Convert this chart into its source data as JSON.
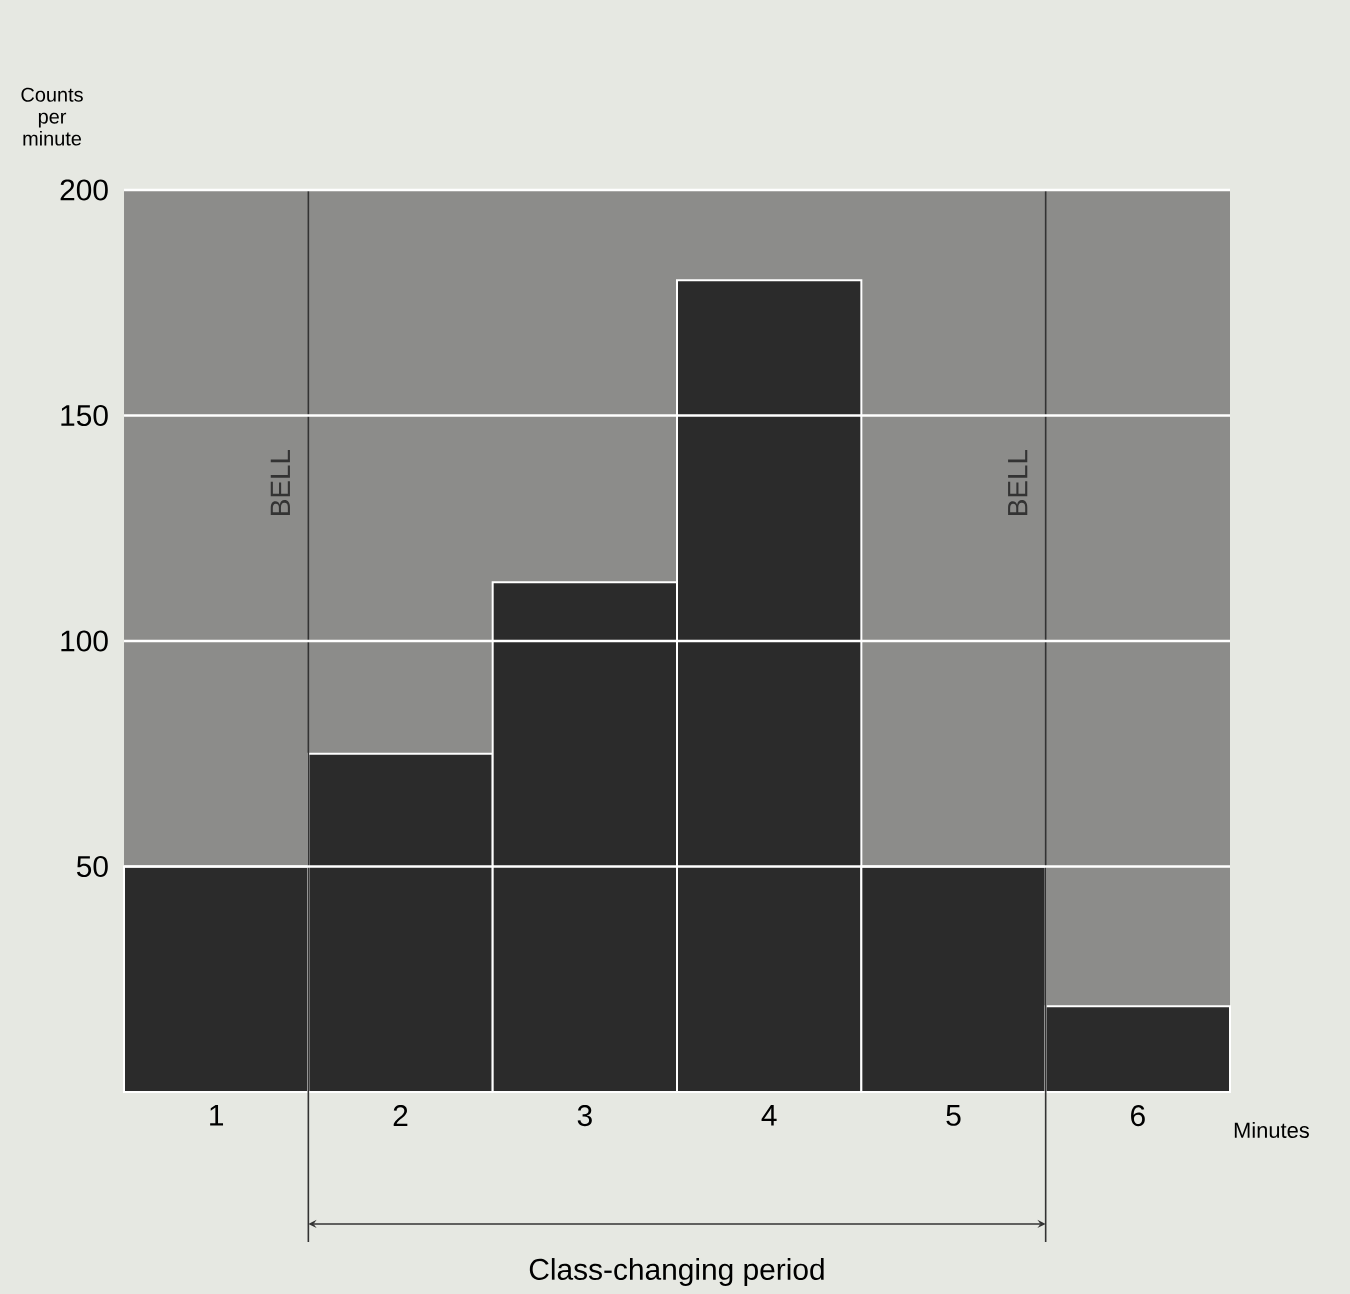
{
  "chart_data": {
    "type": "bar",
    "xlabel": "Minutes",
    "ylabel": "Counts per minute",
    "x": [
      1,
      2,
      3,
      4,
      5,
      6
    ],
    "values": [
      50,
      75,
      113,
      180,
      50,
      19
    ],
    "color": "#2b2b2b",
    "xlim": [
      0.5,
      6.5
    ],
    "xticks": [
      1,
      2,
      3,
      4,
      5,
      6
    ],
    "ylim": [
      0,
      200
    ],
    "yticks": [
      50,
      100,
      150,
      200
    ],
    "grid": "y",
    "ref_lines": [
      {
        "axis": "x",
        "value": 1.5,
        "label": "BELL",
        "color": "#333333"
      },
      {
        "axis": "x",
        "value": 5.5,
        "label": "BELL",
        "color": "#333333"
      }
    ],
    "annotations": [
      "Class-changing period"
    ]
  }
}
